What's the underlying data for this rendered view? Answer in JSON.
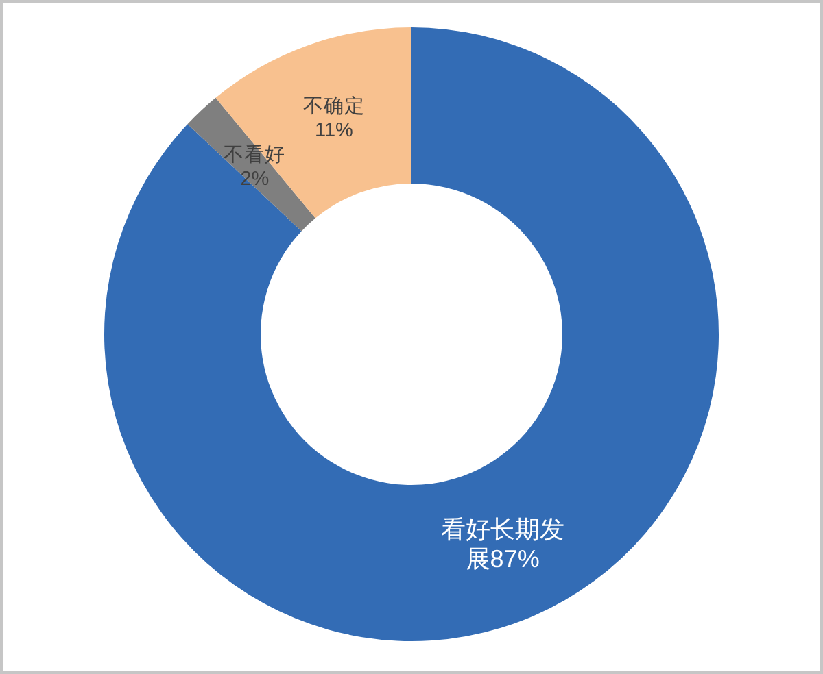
{
  "chart_data": {
    "type": "donut",
    "categories": [
      "看好长期发展",
      "不看好",
      "不确定"
    ],
    "values": [
      87,
      2,
      11
    ],
    "colors": [
      "#336cb5",
      "#7f7f7f",
      "#f8c18f"
    ],
    "value_labels": [
      "87%",
      "2%",
      "11%"
    ]
  }
}
